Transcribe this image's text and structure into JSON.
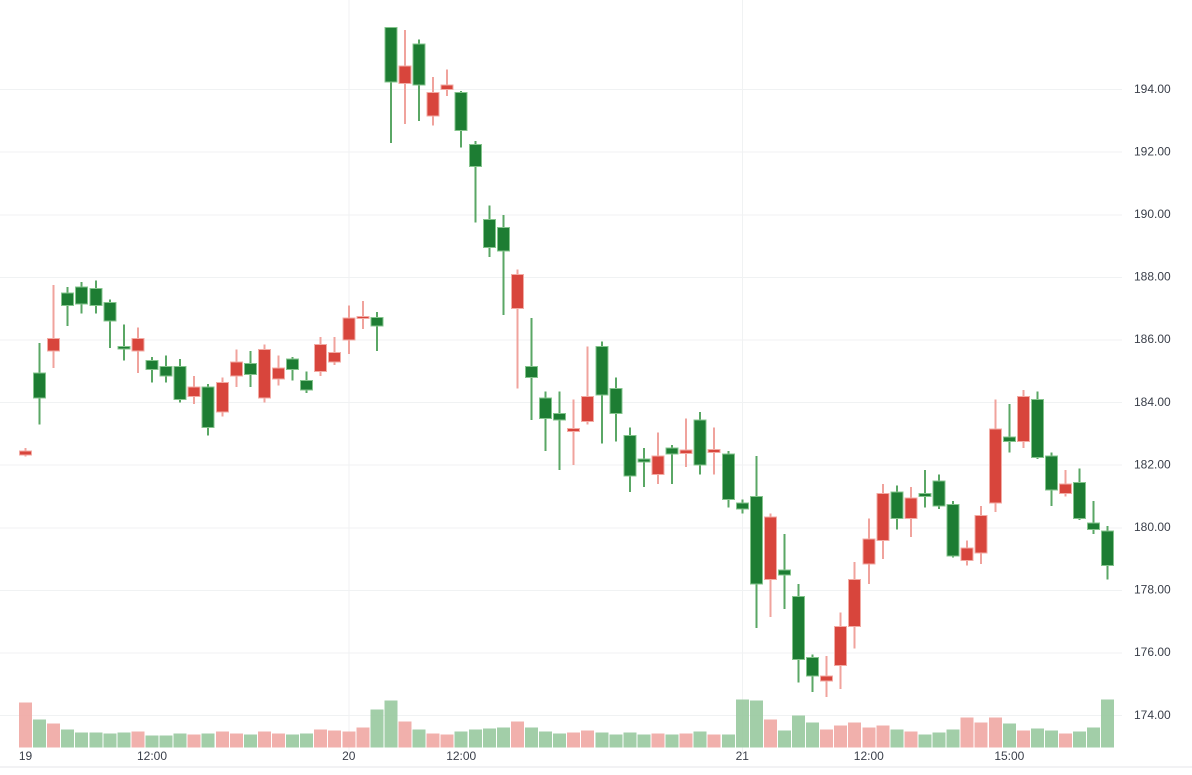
{
  "chart_data": {
    "type": "candlestick",
    "title": "",
    "subtitle": "",
    "legend": [],
    "grid": "horizontal-and-day-verticals",
    "y_axis": {
      "side": "right",
      "min": 174.0,
      "max": 196.0,
      "tick_step": 2.0,
      "tick_labels": [
        "194.00",
        "192.00",
        "190.00",
        "188.00",
        "186.00",
        "184.00",
        "182.00",
        "180.00",
        "178.00",
        "176.00",
        "174.00"
      ],
      "tick_prices": [
        194,
        192,
        190,
        188,
        186,
        184,
        182,
        180,
        178,
        176,
        174
      ]
    },
    "x_axis": {
      "side": "bottom",
      "ticks": [
        {
          "label": "19",
          "index": 0,
          "day_boundary": false
        },
        {
          "label": "12:00",
          "index": 9,
          "day_boundary": false
        },
        {
          "label": "20",
          "index": 23,
          "day_boundary": true
        },
        {
          "label": "12:00",
          "index": 31,
          "day_boundary": false
        },
        {
          "label": "21",
          "index": 51,
          "day_boundary": true
        },
        {
          "label": "12:00",
          "index": 60,
          "day_boundary": false
        },
        {
          "label": "15:00",
          "index": 70,
          "day_boundary": false
        }
      ]
    },
    "series_note": "candles are [open, high, low, close, volume_rel]; up if close>=open",
    "candles": [
      [
        182.45,
        182.55,
        182.28,
        182.32,
        45
      ],
      [
        184.15,
        185.9,
        183.3,
        184.95,
        28
      ],
      [
        186.05,
        187.75,
        185.1,
        185.65,
        24
      ],
      [
        187.1,
        187.7,
        186.45,
        187.5,
        18
      ],
      [
        187.15,
        187.85,
        186.85,
        187.7,
        15
      ],
      [
        187.1,
        187.9,
        186.85,
        187.65,
        15
      ],
      [
        186.6,
        187.3,
        185.75,
        187.2,
        14
      ],
      [
        185.72,
        186.5,
        185.35,
        185.8,
        15
      ],
      [
        186.05,
        186.4,
        184.95,
        185.65,
        16
      ],
      [
        185.05,
        185.45,
        184.65,
        185.35,
        12
      ],
      [
        184.85,
        185.5,
        184.65,
        185.15,
        12
      ],
      [
        184.1,
        185.4,
        184.0,
        185.15,
        14
      ],
      [
        184.5,
        184.85,
        183.95,
        184.2,
        13
      ],
      [
        183.2,
        184.6,
        182.95,
        184.5,
        14
      ],
      [
        184.65,
        184.8,
        183.55,
        183.7,
        16
      ],
      [
        185.3,
        185.7,
        184.5,
        184.85,
        14
      ],
      [
        184.9,
        185.65,
        184.5,
        185.25,
        13
      ],
      [
        185.7,
        185.85,
        184.0,
        184.15,
        16
      ],
      [
        185.1,
        185.5,
        184.55,
        184.75,
        14
      ],
      [
        185.05,
        185.45,
        184.7,
        185.4,
        13
      ],
      [
        184.4,
        185.0,
        184.3,
        184.7,
        14
      ],
      [
        185.85,
        186.1,
        184.85,
        185.0,
        18
      ],
      [
        185.6,
        186.1,
        185.2,
        185.3,
        17
      ],
      [
        186.7,
        187.1,
        185.55,
        186.0,
        16
      ],
      [
        186.75,
        187.25,
        186.35,
        186.68,
        20
      ],
      [
        186.45,
        186.9,
        185.65,
        186.72,
        38
      ],
      [
        194.25,
        196.0,
        192.3,
        195.98,
        47
      ],
      [
        194.75,
        195.9,
        192.9,
        194.2,
        26
      ],
      [
        194.15,
        195.6,
        193.0,
        195.45,
        18
      ],
      [
        193.9,
        194.4,
        192.85,
        193.15,
        14
      ],
      [
        194.15,
        194.65,
        193.8,
        194.0,
        13
      ],
      [
        192.7,
        193.95,
        192.15,
        193.9,
        16
      ],
      [
        191.55,
        192.35,
        189.75,
        192.25,
        18
      ],
      [
        188.95,
        190.3,
        188.65,
        189.85,
        19
      ],
      [
        188.85,
        190.0,
        186.8,
        189.6,
        20
      ],
      [
        188.1,
        188.25,
        184.45,
        187.0,
        26
      ],
      [
        184.8,
        186.7,
        183.45,
        185.15,
        20
      ],
      [
        183.5,
        184.35,
        182.45,
        184.15,
        16
      ],
      [
        183.45,
        184.35,
        181.85,
        183.65,
        14
      ],
      [
        183.17,
        184.1,
        182.0,
        183.07,
        15
      ],
      [
        184.2,
        185.8,
        183.3,
        183.4,
        17
      ],
      [
        184.25,
        185.95,
        182.7,
        185.8,
        15
      ],
      [
        183.65,
        184.8,
        182.75,
        184.45,
        13
      ],
      [
        181.65,
        183.2,
        181.15,
        182.95,
        15
      ],
      [
        182.1,
        182.55,
        181.3,
        182.2,
        13
      ],
      [
        182.3,
        183.05,
        181.4,
        181.7,
        14
      ],
      [
        182.35,
        182.65,
        181.4,
        182.55,
        13
      ],
      [
        182.48,
        183.5,
        181.95,
        182.38,
        14
      ],
      [
        182.0,
        183.7,
        181.7,
        183.45,
        16
      ],
      [
        182.5,
        183.2,
        181.7,
        182.4,
        13
      ],
      [
        180.9,
        182.45,
        180.65,
        182.35,
        13
      ],
      [
        180.6,
        180.9,
        180.45,
        180.8,
        48
      ],
      [
        178.2,
        182.3,
        176.8,
        181.0,
        47
      ],
      [
        180.35,
        180.45,
        177.15,
        178.35,
        28
      ],
      [
        178.5,
        179.8,
        177.4,
        178.65,
        17
      ],
      [
        175.8,
        178.2,
        175.05,
        177.8,
        32
      ],
      [
        175.27,
        175.95,
        174.75,
        175.85,
        25
      ],
      [
        175.27,
        175.9,
        174.6,
        175.11,
        18
      ],
      [
        176.85,
        177.3,
        174.85,
        175.6,
        22
      ],
      [
        178.35,
        178.9,
        176.15,
        176.85,
        25
      ],
      [
        179.65,
        180.3,
        178.2,
        178.85,
        20
      ],
      [
        181.1,
        181.4,
        179.0,
        179.6,
        22
      ],
      [
        180.3,
        181.35,
        179.95,
        181.15,
        18
      ],
      [
        180.95,
        181.3,
        179.7,
        180.3,
        16
      ],
      [
        181.0,
        181.85,
        180.65,
        181.1,
        13
      ],
      [
        180.7,
        181.7,
        180.6,
        181.5,
        15
      ],
      [
        179.1,
        180.85,
        179.05,
        180.75,
        18
      ],
      [
        179.35,
        179.6,
        178.8,
        178.95,
        30
      ],
      [
        180.4,
        180.7,
        178.85,
        179.2,
        25
      ],
      [
        183.15,
        184.1,
        180.5,
        180.8,
        30
      ],
      [
        182.75,
        183.95,
        182.4,
        182.9,
        24
      ],
      [
        184.2,
        184.4,
        182.55,
        182.75,
        17
      ],
      [
        182.25,
        184.35,
        182.2,
        184.1,
        19
      ],
      [
        181.2,
        182.4,
        180.7,
        182.3,
        17
      ],
      [
        181.4,
        181.85,
        181.0,
        181.1,
        14
      ],
      [
        180.3,
        181.9,
        180.25,
        181.45,
        16
      ],
      [
        179.95,
        180.85,
        179.8,
        180.15,
        20
      ],
      [
        178.8,
        180.05,
        178.35,
        179.9,
        48
      ]
    ],
    "colors": {
      "background": "#ffffff",
      "up_body": "#1d7d33",
      "up_border": "#84c48c",
      "up_wick": "#5aa765",
      "down_body": "#d8453c",
      "down_border": "#f2aba4",
      "down_wick": "#f0a39d",
      "volume_up": "#98c99e",
      "volume_down": "#f0a7a3",
      "gridline": "#f0f2f3",
      "axis_line": "#e4e6e8",
      "axis_text": "#3a3f4a"
    }
  }
}
